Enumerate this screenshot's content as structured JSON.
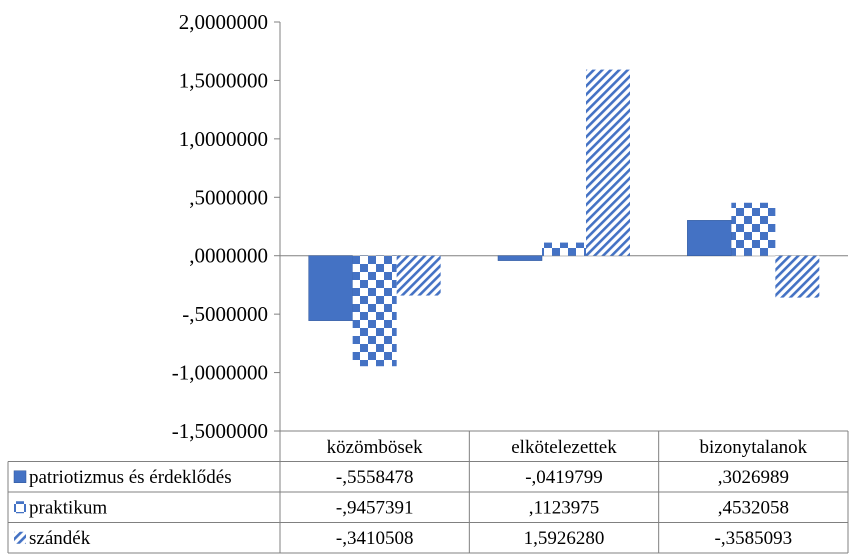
{
  "chart_data": {
    "type": "bar",
    "categories": [
      "közömbösek",
      "elkötelezettek",
      "bizonytalanok"
    ],
    "series": [
      {
        "name": "patriotizmus és érdeklődés",
        "values": [
          -0.5558478,
          -0.0419799,
          0.3026989
        ],
        "labels": [
          "-,5558478",
          "-,0419799",
          ",3026989"
        ],
        "pattern": "solid"
      },
      {
        "name": "praktikum",
        "values": [
          -0.9457391,
          0.1123975,
          0.4532058
        ],
        "labels": [
          "-,9457391",
          ",1123975",
          ",4532058"
        ],
        "pattern": "checker"
      },
      {
        "name": "szándék",
        "values": [
          -0.3410508,
          1.592628,
          -0.3585093
        ],
        "labels": [
          "-,3410508",
          "1,5926280",
          "-,3585093"
        ],
        "pattern": "diagonal"
      }
    ],
    "y_ticks": [
      2.0,
      1.5,
      1.0,
      0.5,
      0.0,
      -0.5,
      -1.0,
      -1.5
    ],
    "y_tick_labels": [
      "2,0000000",
      "1,5000000",
      "1,0000000",
      ",5000000",
      ",0000000",
      "-,5000000",
      "-1,0000000",
      "-1,5000000"
    ],
    "ylim": [
      -1.5,
      2.0
    ],
    "grid": false,
    "legend": "data-table",
    "colors": {
      "bar": "#4472c4",
      "bar_edge": "#2f5597",
      "axis": "#808080"
    }
  }
}
